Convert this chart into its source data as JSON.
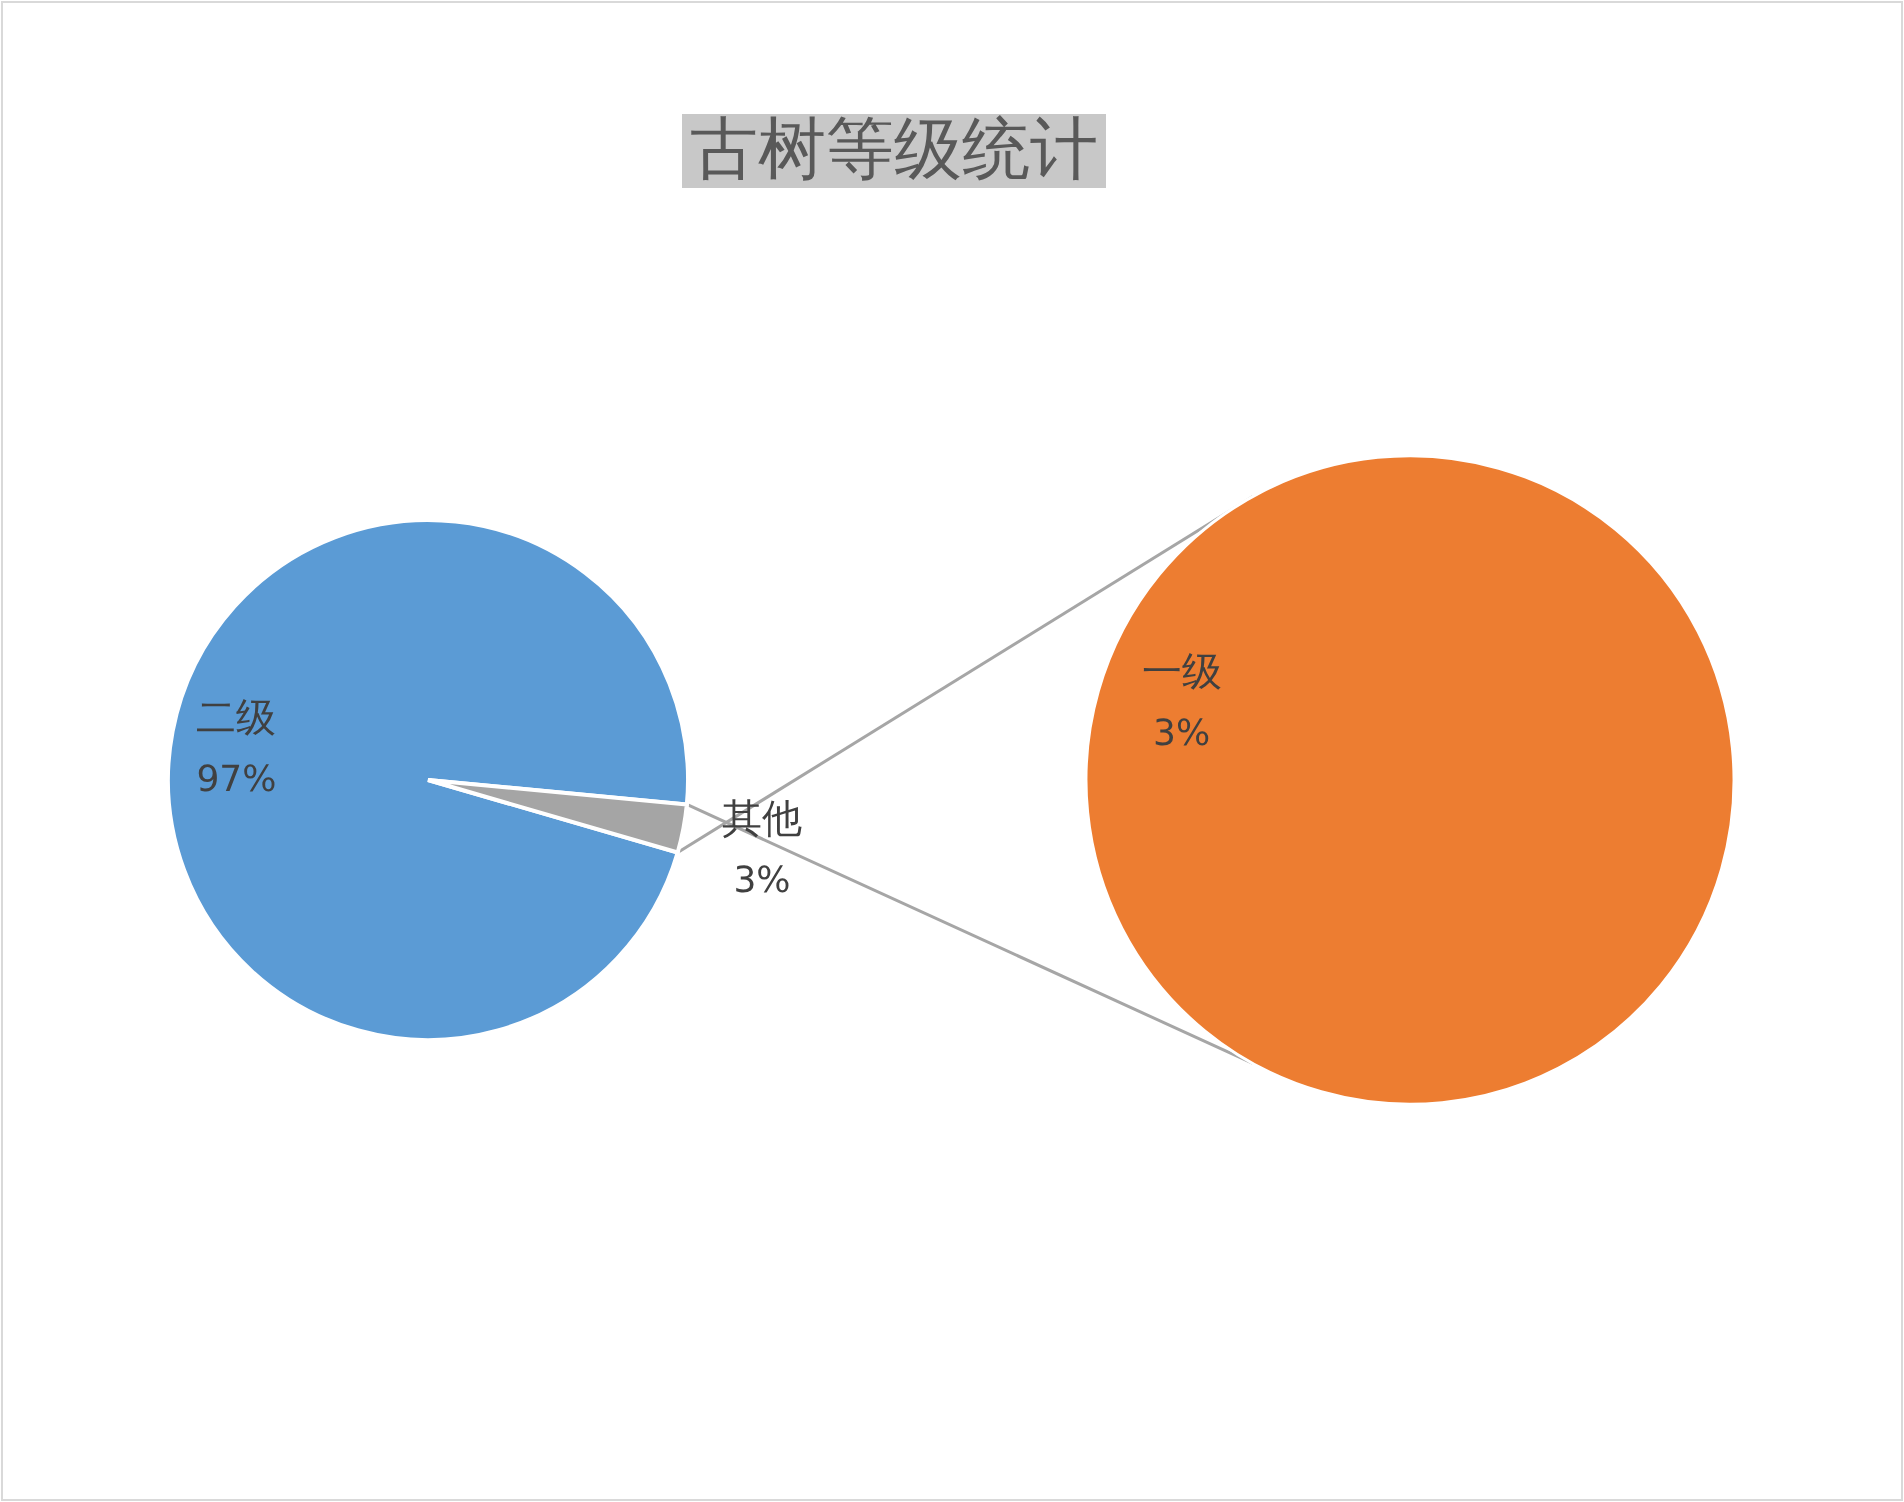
{
  "chart_data": [
    {
      "type": "pie",
      "title": "古树等级统计",
      "categories": [
        "二级",
        "其他"
      ],
      "values": [
        97,
        3
      ],
      "value_labels": [
        "97%",
        "3%"
      ],
      "colors": [
        "#5b9bd5",
        "#a5a5a5"
      ]
    },
    {
      "type": "pie",
      "categories": [
        "一级"
      ],
      "values": [
        3
      ],
      "value_labels": [
        "3%"
      ],
      "colors": [
        "#ed7d31"
      ]
    }
  ]
}
